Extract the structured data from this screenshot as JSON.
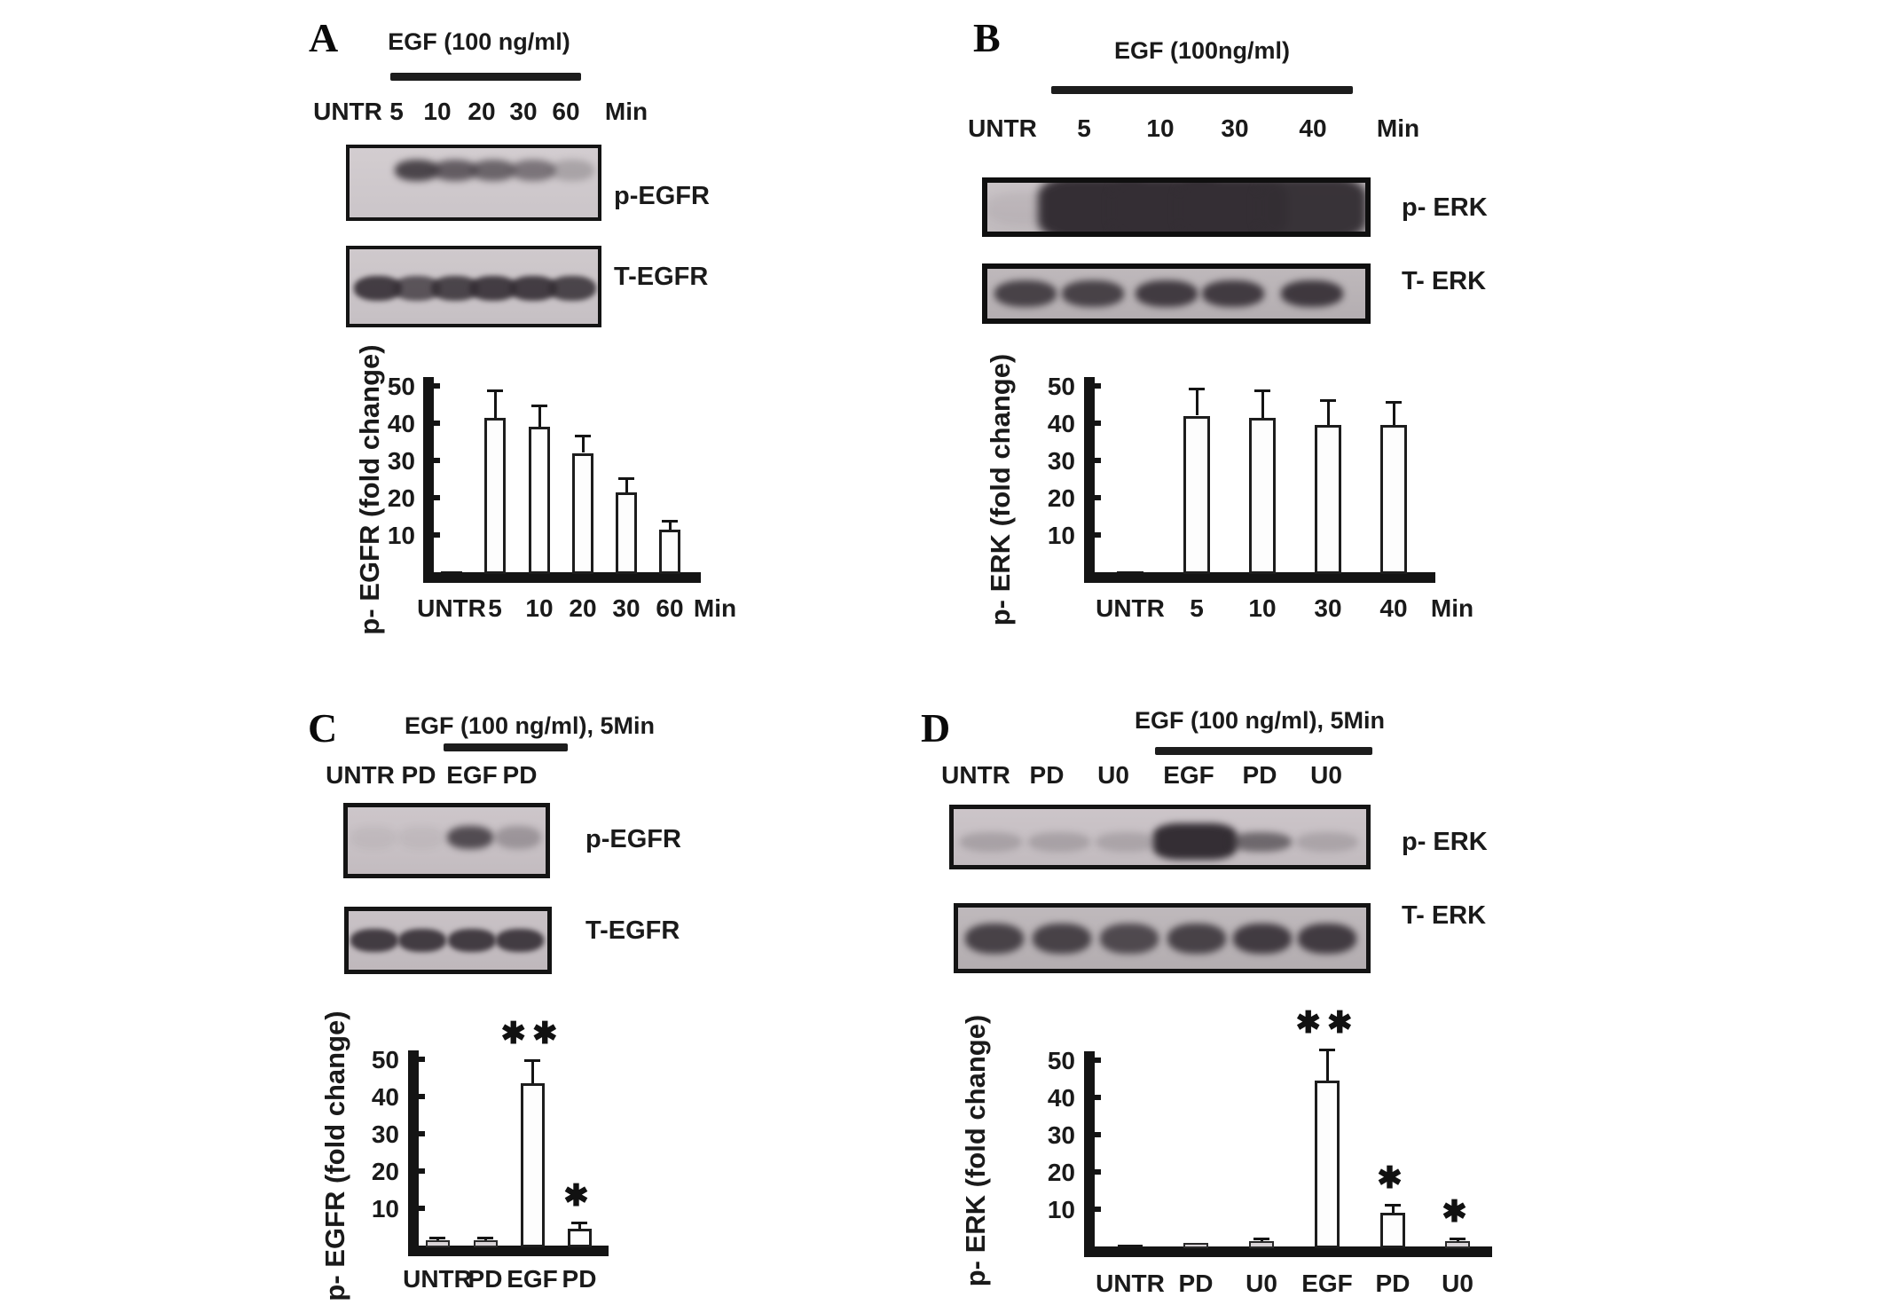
{
  "figure": {
    "description": "Western blot and densitometry figure with four panels",
    "colors": {
      "text": "#111111",
      "axis": "#141414",
      "band": "#3a343a",
      "bar_fill": "#fdfdfd"
    },
    "panels": [
      {
        "label": "A",
        "treatment": "EGF (100 ng/ml)",
        "lane_labels": [
          "UNTR",
          "5",
          "10",
          "20",
          "30",
          "60"
        ],
        "lane_unit": "Min",
        "blots": [
          {
            "label": "p-EGFR",
            "bands": [
              0,
              0.85,
              0.7,
              0.65,
              0.55,
              0.25
            ]
          },
          {
            "label": "T-EGFR",
            "bands": [
              0.9,
              0.75,
              0.85,
              0.9,
              0.9,
              0.85
            ]
          }
        ]
      },
      {
        "label": "B",
        "treatment": "EGF (100ng/ml)",
        "lane_labels": [
          "UNTR",
          "5",
          "10",
          "30",
          "40"
        ],
        "lane_unit": "Min",
        "blots": [
          {
            "label": "p- ERK",
            "bands": [
              0.07,
              1,
              1,
              1,
              0.97
            ]
          },
          {
            "label": "T- ERK",
            "bands": [
              0.85,
              0.85,
              0.9,
              0.9,
              0.92
            ]
          }
        ]
      },
      {
        "label": "C",
        "treatment": "EGF (100 ng/ml), 5Min",
        "lane_labels": [
          "UNTR",
          "PD",
          "EGF",
          "PD"
        ],
        "lane_unit": "",
        "blots": [
          {
            "label": "p-EGFR",
            "bands": [
              0.06,
              0.06,
              0.8,
              0.3
            ]
          },
          {
            "label": "T-EGFR",
            "bands": [
              0.9,
              0.9,
              0.9,
              0.9
            ]
          }
        ]
      },
      {
        "label": "D",
        "treatment": "EGF (100 ng/ml), 5Min",
        "lane_labels": [
          "UNTR",
          "PD",
          "U0",
          "EGF",
          "PD",
          "U0"
        ],
        "lane_unit": "",
        "blots": [
          {
            "label": "p- ERK",
            "bands": [
              0.2,
              0.2,
              0.18,
              1,
              0.6,
              0.18
            ]
          },
          {
            "label": "T- ERK",
            "bands": [
              0.85,
              0.85,
              0.8,
              0.85,
              0.9,
              0.9
            ]
          }
        ]
      }
    ]
  },
  "chart_data": [
    {
      "type": "bar",
      "panel": "A",
      "title": "",
      "categories": [
        "UNTR",
        "5",
        "10",
        "20",
        "30",
        "60"
      ],
      "x_unit": "Min",
      "values": [
        0.8,
        42,
        39.5,
        32.5,
        22,
        12
      ],
      "errors": [
        0,
        7,
        5.5,
        4.5,
        3.5,
        2
      ],
      "annotations": [
        "",
        "",
        "",
        "",
        "",
        ""
      ],
      "ylabel": "p- EGFR (fold change)",
      "yticks": [
        10,
        20,
        30,
        40,
        50
      ],
      "ylim": [
        0,
        52
      ],
      "grid": false,
      "legend": "none"
    },
    {
      "type": "bar",
      "panel": "B",
      "title": "",
      "categories": [
        "UNTR",
        "5",
        "10",
        "30",
        "40"
      ],
      "x_unit": "Min",
      "values": [
        0.8,
        42.5,
        42,
        40,
        40
      ],
      "errors": [
        0,
        7,
        7,
        6.5,
        6
      ],
      "annotations": [
        "",
        "",
        "",
        "",
        ""
      ],
      "ylabel": "p- ERK (fold change)",
      "yticks": [
        10,
        20,
        30,
        40,
        50
      ],
      "ylim": [
        0,
        52
      ],
      "grid": false,
      "legend": "none"
    },
    {
      "type": "bar",
      "panel": "C",
      "title": "",
      "categories": [
        "UNTR",
        "PD",
        "EGF",
        "PD"
      ],
      "x_unit": "",
      "values": [
        2,
        2,
        44,
        5
      ],
      "errors": [
        0.5,
        0.5,
        6,
        1.5
      ],
      "annotations": [
        "",
        "",
        "**",
        "*"
      ],
      "ylabel": "p- EGFR (fold change)",
      "yticks": [
        10,
        20,
        30,
        40,
        50
      ],
      "ylim": [
        0,
        52
      ],
      "grid": false,
      "legend": "none"
    },
    {
      "type": "bar",
      "panel": "D",
      "title": "",
      "categories": [
        "UNTR",
        "PD",
        "U0",
        "EGF",
        "PD",
        "U0"
      ],
      "x_unit": "",
      "values": [
        1,
        1.5,
        2,
        45,
        9.5,
        2
      ],
      "errors": [
        0,
        0.4,
        0.5,
        8,
        2,
        0.5
      ],
      "annotations": [
        "",
        "",
        "",
        "**",
        "*",
        "*"
      ],
      "ylabel": "p- ERK (fold change)",
      "yticks": [
        10,
        20,
        30,
        40,
        50
      ],
      "ylim": [
        0,
        52
      ],
      "grid": false,
      "legend": "none"
    }
  ]
}
